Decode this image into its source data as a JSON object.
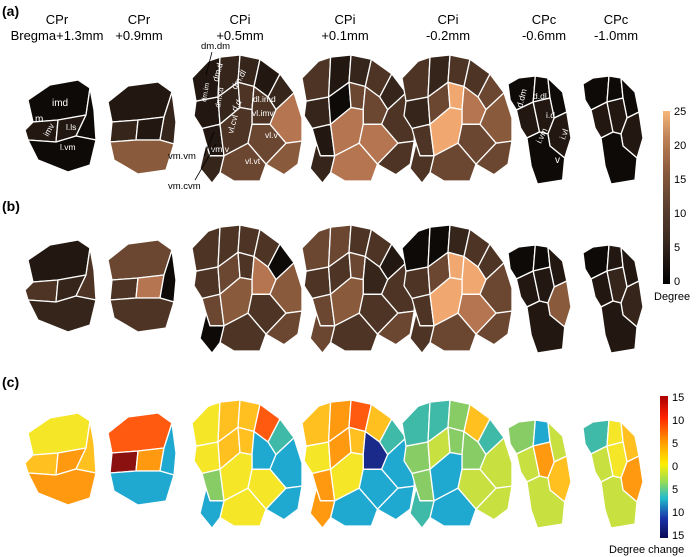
{
  "panels": [
    "(a)",
    "(b)",
    "(c)"
  ],
  "columns": [
    {
      "name": "CPr",
      "coord": "Bregma+1.3mm"
    },
    {
      "name": "CPr",
      "coord": "+0.9mm"
    },
    {
      "name": "CPi",
      "coord": "+0.5mm"
    },
    {
      "name": "CPi",
      "coord": "+0.1mm"
    },
    {
      "name": "CPi",
      "coord": "-0.2mm"
    },
    {
      "name": "CPc",
      "coord": "-0.6mm"
    },
    {
      "name": "CPc",
      "coord": "-1.0mm"
    }
  ],
  "region_labels": {
    "cpr_rostral": [
      "imd",
      "m",
      "imv",
      "l.ls",
      "l.vm"
    ],
    "cpi_rostral": [
      "dm.im",
      "dm.cd",
      "dm.dl",
      "dl.imd",
      "vl.imv",
      "vl.v",
      "vl.vt",
      "vm.v",
      "vl.cvl",
      "d.d",
      "dm.d"
    ],
    "cpc_rostral": [
      "d.dm",
      "d.dl",
      "i.d",
      "i.vm",
      "i.vl",
      "v"
    ]
  },
  "annotations": [
    "dm.dm",
    "vm.vm",
    "vm.cvm"
  ],
  "colorbar_degree": {
    "title": "Degree",
    "ticks": [
      "25",
      "20",
      "15",
      "10",
      "5",
      "0"
    ],
    "colors": [
      "#000000",
      "#3a2a20",
      "#5c4030",
      "#8a5a3c",
      "#b87a50",
      "#f5b77a"
    ]
  },
  "colorbar_change": {
    "title": "Degree change",
    "ticks": [
      "15",
      "10",
      "5",
      "0",
      "5",
      "10",
      "15"
    ],
    "colors": [
      "#aa0000",
      "#ff2200",
      "#ff9900",
      "#ffee00",
      "#99dd55",
      "#22bbcc",
      "#1a33aa",
      "#0a0a55"
    ]
  },
  "brown_palette": [
    "#0e0a08",
    "#231811",
    "#35251b",
    "#4d3424",
    "#6b4631",
    "#8a5a3c",
    "#b47550",
    "#f0a870"
  ],
  "jet_palette": [
    "#8b1010",
    "#ff5a10",
    "#ff9a10",
    "#ffc020",
    "#f5e628",
    "#c8e040",
    "#88cc66",
    "#3fb9a8",
    "#1fa8d0",
    "#1a2a8a"
  ]
}
